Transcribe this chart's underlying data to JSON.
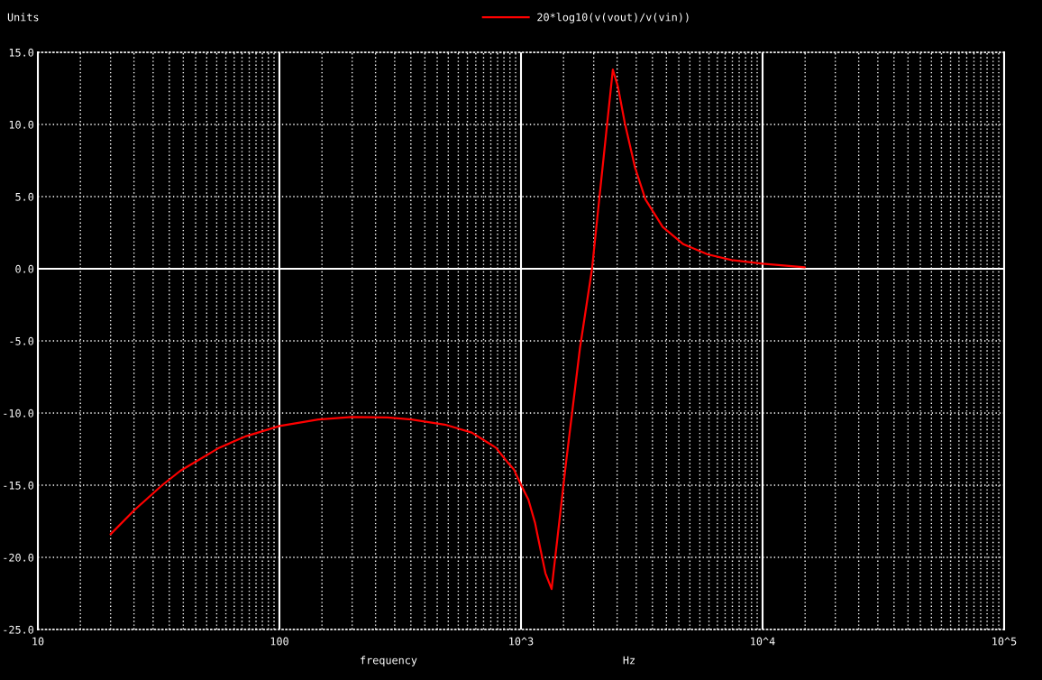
{
  "chart_data": {
    "type": "line",
    "ylabel": "Units",
    "xlabel": "frequency",
    "annotations": [
      "Hz"
    ],
    "log": "x",
    "grid": true,
    "legend": "top",
    "xlim": [
      10,
      100000
    ],
    "xticks": [
      10,
      100,
      {
        "value": 1000,
        "label": "10^3"
      },
      {
        "value": 10000,
        "label": "10^4"
      },
      {
        "value": 100000,
        "label": "10^5"
      }
    ],
    "ylim": [
      -25,
      15
    ],
    "yticks": [
      {
        "value": -25,
        "label": "-25.0"
      },
      {
        "value": -20,
        "label": "-20.0"
      },
      {
        "value": -15,
        "label": "-15.0"
      },
      {
        "value": -10,
        "label": "-10.0"
      },
      {
        "value": -5,
        "label": "-5.0"
      },
      {
        "value": 0,
        "label": "0.0"
      },
      {
        "value": 5,
        "label": "5.0"
      },
      {
        "value": 10,
        "label": "10.0"
      },
      {
        "value": 15,
        "label": "15.0"
      }
    ],
    "series": [
      {
        "name": "20*log10(v(vout)/v(vin))",
        "color": "#ff0000",
        "x": [
          20,
          25,
          32.7,
          38.9,
          56.4,
          72.9,
          100,
          145,
          199,
          280,
          352,
          483,
          625,
          721,
          787,
          879,
          934,
          1002,
          1073,
          1143,
          1172,
          1262,
          1339,
          1537,
          1754,
          1968,
          2138,
          2400,
          2520,
          2690,
          2967,
          3275,
          3859,
          4701,
          5918,
          7448,
          10000,
          14960
        ],
        "values": [
          -18.4,
          -16.75,
          -15.0,
          -14.0,
          -12.4,
          -11.6,
          -10.9,
          -10.45,
          -10.27,
          -10.3,
          -10.45,
          -10.8,
          -11.35,
          -12.0,
          -12.4,
          -13.4,
          -13.9,
          -15.0,
          -16.0,
          -17.6,
          -18.5,
          -21.1,
          -22.2,
          -13.4,
          -5.5,
          0.0,
          5.8,
          13.8,
          12.6,
          10.1,
          7.0,
          4.8,
          2.9,
          1.7,
          1.0,
          0.6,
          0.35,
          0.1
        ]
      }
    ]
  }
}
